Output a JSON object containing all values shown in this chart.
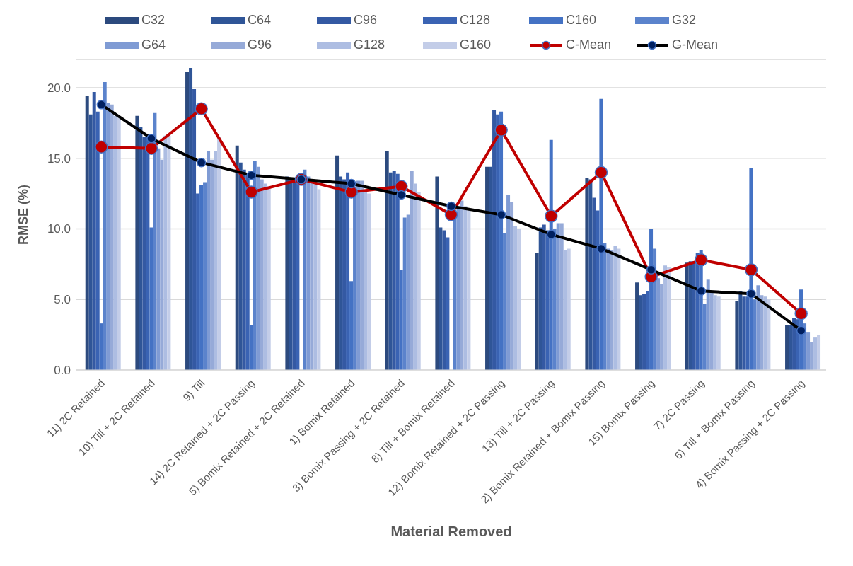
{
  "chart_data": {
    "type": "bar",
    "xlabel": "Material Removed",
    "ylabel": "RMSE (%)",
    "categories": [
      "11) 2C Retained",
      "10) Till + 2C Retained",
      "9) Till",
      "14) 2C Retained + 2C Passing",
      "5) Bomix Retained + 2C Retained",
      "1) Bomix Retained",
      "3) Bomix Passing  + 2C Retained",
      "8) Till + Bomix Retained",
      "12) Bomix Retained + 2C Passing",
      "13) Till + 2C Passing",
      "2) Bomix Retained + Bomix Passing",
      "15) Bomix Passing",
      "7) 2C Passing",
      "6) Till + Bomix Passing",
      "4) Bomix Passing  + 2C Passing"
    ],
    "ylim": [
      0,
      22
    ],
    "yticks": [
      {
        "value": 0,
        "label": "0.0"
      },
      {
        "value": 5,
        "label": "5.0"
      },
      {
        "value": 10,
        "label": "10.0"
      },
      {
        "value": 15,
        "label": "15.0"
      },
      {
        "value": 20,
        "label": "20.0"
      }
    ],
    "grid": "y",
    "legend": "top",
    "marker": "circle",
    "series": [
      {
        "name": "C32",
        "color": "#2c4a7e",
        "values": [
          19.4,
          18.0,
          21.1,
          15.9,
          13.7,
          15.2,
          15.5,
          13.7,
          14.4,
          8.3,
          13.6,
          6.2,
          7.6,
          4.9,
          3.2
        ]
      },
      {
        "name": "C64",
        "color": "#2f5597",
        "values": [
          18.1,
          17.2,
          21.4,
          14.7,
          13.6,
          13.7,
          14.0,
          10.1,
          14.4,
          10.1,
          13.5,
          5.3,
          7.7,
          5.6,
          3.2
        ]
      },
      {
        "name": "C96",
        "color": "#3459a3",
        "values": [
          19.7,
          16.5,
          19.9,
          14.2,
          13.5,
          13.5,
          14.1,
          9.9,
          18.4,
          10.3,
          12.2,
          5.4,
          7.7,
          5.2,
          3.7
        ]
      },
      {
        "name": "C128",
        "color": "#3a63b3",
        "values": [
          18.3,
          16.7,
          12.5,
          13.9,
          13.4,
          14.0,
          13.9,
          9.4,
          18.1,
          9.9,
          11.3,
          5.6,
          8.3,
          5.2,
          3.6
        ]
      },
      {
        "name": "C160",
        "color": "#4472c4",
        "values": [
          3.3,
          10.1,
          13.1,
          3.2,
          null,
          6.3,
          7.1,
          null,
          18.3,
          16.3,
          19.2,
          10.0,
          8.5,
          14.3,
          5.7
        ]
      },
      {
        "name": "G32",
        "color": "#5b83cc",
        "values": [
          20.4,
          18.2,
          13.3,
          14.8,
          14.2,
          13.0,
          10.8,
          11.3,
          9.7,
          10.0,
          9.0,
          8.6,
          4.7,
          5.0,
          3.3
        ]
      },
      {
        "name": "G64",
        "color": "#7f9bd4",
        "values": [
          18.9,
          15.7,
          15.5,
          14.4,
          13.7,
          13.4,
          11.0,
          11.5,
          12.4,
          10.4,
          8.6,
          6.5,
          6.4,
          6.0,
          2.7
        ]
      },
      {
        "name": "G96",
        "color": "#96aad8",
        "values": [
          18.8,
          14.9,
          14.9,
          13.5,
          13.4,
          13.4,
          14.1,
          12.0,
          11.9,
          10.4,
          8.5,
          6.1,
          5.5,
          5.3,
          2.0
        ]
      },
      {
        "name": "G128",
        "color": "#adbde2",
        "values": [
          18.0,
          16.6,
          15.5,
          13.2,
          13.2,
          12.6,
          13.2,
          11.6,
          10.2,
          8.5,
          8.8,
          7.4,
          5.3,
          5.2,
          2.3
        ]
      },
      {
        "name": "G160",
        "color": "#c3cde8",
        "values": [
          17.9,
          16.6,
          16.5,
          13.0,
          12.8,
          12.5,
          12.6,
          11.4,
          10.0,
          8.6,
          8.6,
          7.3,
          5.2,
          5.0,
          2.5
        ]
      },
      {
        "name": "C-Mean",
        "type": "line",
        "color": "#c00000",
        "values": [
          15.8,
          15.7,
          18.5,
          12.6,
          13.5,
          12.6,
          13.0,
          11.0,
          17.0,
          10.9,
          14.0,
          6.6,
          7.8,
          7.1,
          4.0
        ]
      },
      {
        "name": "G-Mean",
        "type": "line",
        "color": "#000000",
        "values": [
          18.8,
          16.4,
          14.7,
          13.8,
          13.5,
          13.2,
          12.4,
          11.6,
          11.0,
          9.6,
          8.6,
          7.1,
          5.6,
          5.4,
          2.8
        ]
      }
    ]
  }
}
